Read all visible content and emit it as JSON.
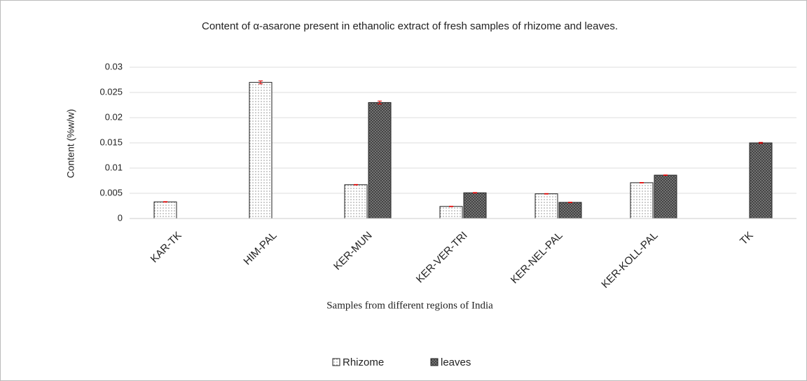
{
  "chart_data": {
    "type": "bar",
    "title": "Content of α-asarone present in ethanolic extract of fresh samples of  rhizome and leaves.",
    "x_label": "Samples from different regions of India",
    "y_label": "Content (%w/w)",
    "categories": [
      "KAR-TK",
      "HIM-PAL",
      "KER-MUN",
      "KER-VER-TRI",
      "KER-NEL-PAL",
      "KER-KOLL-PAL",
      "TK"
    ],
    "series": [
      {
        "name": "Rhizome",
        "color": "#ffffff",
        "values": [
          0.0033,
          0.027,
          0.0067,
          0.0024,
          0.0049,
          0.0071,
          null
        ],
        "errors": [
          5e-05,
          0.0003,
          5e-05,
          5e-05,
          5e-05,
          5e-05,
          null
        ]
      },
      {
        "name": "leaves",
        "color": "#3a3a3a",
        "values": [
          null,
          null,
          0.023,
          0.0051,
          0.0032,
          0.0086,
          0.015
        ],
        "errors": [
          null,
          null,
          0.0003,
          5e-05,
          5e-05,
          5e-05,
          0.0001
        ]
      }
    ],
    "ylim": [
      0,
      0.03
    ],
    "yticks": [
      0,
      0.005,
      0.01,
      0.015,
      0.02,
      0.025,
      0.03
    ],
    "grid": true,
    "legend": "bottom",
    "error_bar_color": "#e00000"
  }
}
